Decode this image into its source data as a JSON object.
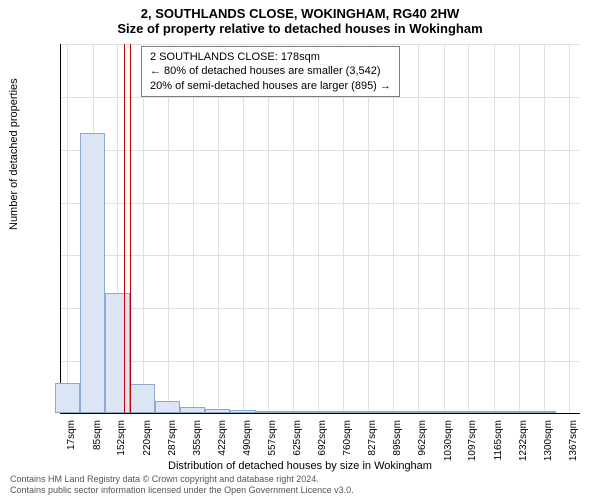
{
  "title": {
    "line1": "2, SOUTHLANDS CLOSE, WOKINGHAM, RG40 2HW",
    "line2": "Size of property relative to detached houses in Wokingham"
  },
  "chart": {
    "type": "histogram",
    "xlim": [
      0,
      1400
    ],
    "ylim": [
      0,
      3500
    ],
    "ytick_step": 500,
    "background_color": "#ffffff",
    "grid_color": "#e0e0e0",
    "bar_fill": "#dbe5f4",
    "bar_border": "#8ea9d0",
    "marker_color": "#c00000",
    "marker_x": 178,
    "marker_width": 6,
    "xtick_positions": [
      17,
      85,
      152,
      220,
      287,
      355,
      422,
      490,
      557,
      625,
      692,
      760,
      827,
      895,
      962,
      1030,
      1097,
      1165,
      1232,
      1300,
      1367
    ],
    "xtick_labels": [
      "17sqm",
      "85sqm",
      "152sqm",
      "220sqm",
      "287sqm",
      "355sqm",
      "422sqm",
      "490sqm",
      "557sqm",
      "625sqm",
      "692sqm",
      "760sqm",
      "827sqm",
      "895sqm",
      "962sqm",
      "1030sqm",
      "1097sqm",
      "1165sqm",
      "1232sqm",
      "1300sqm",
      "1367sqm"
    ],
    "bins": [
      {
        "x": 17,
        "count": 280
      },
      {
        "x": 85,
        "count": 2650
      },
      {
        "x": 152,
        "count": 1140
      },
      {
        "x": 220,
        "count": 270
      },
      {
        "x": 287,
        "count": 110
      },
      {
        "x": 355,
        "count": 60
      },
      {
        "x": 422,
        "count": 40
      },
      {
        "x": 490,
        "count": 30
      },
      {
        "x": 557,
        "count": 20
      },
      {
        "x": 625,
        "count": 15
      },
      {
        "x": 692,
        "count": 12
      },
      {
        "x": 760,
        "count": 10
      },
      {
        "x": 827,
        "count": 8
      },
      {
        "x": 895,
        "count": 6
      },
      {
        "x": 962,
        "count": 5
      },
      {
        "x": 1030,
        "count": 4
      },
      {
        "x": 1097,
        "count": 3
      },
      {
        "x": 1165,
        "count": 2
      },
      {
        "x": 1232,
        "count": 2
      },
      {
        "x": 1300,
        "count": 1
      }
    ],
    "bin_width_x": 68
  },
  "legend": {
    "line1": "2 SOUTHLANDS CLOSE: 178sqm",
    "line2": "← 80% of detached houses are smaller (3,542)",
    "line3": "20% of semi-detached houses are larger (895) →"
  },
  "axis": {
    "ylabel": "Number of detached properties",
    "xlabel": "Distribution of detached houses by size in Wokingham"
  },
  "footer": {
    "line1": "Contains HM Land Registry data © Crown copyright and database right 2024.",
    "line2": "Contains public sector information licensed under the Open Government Licence v3.0."
  }
}
